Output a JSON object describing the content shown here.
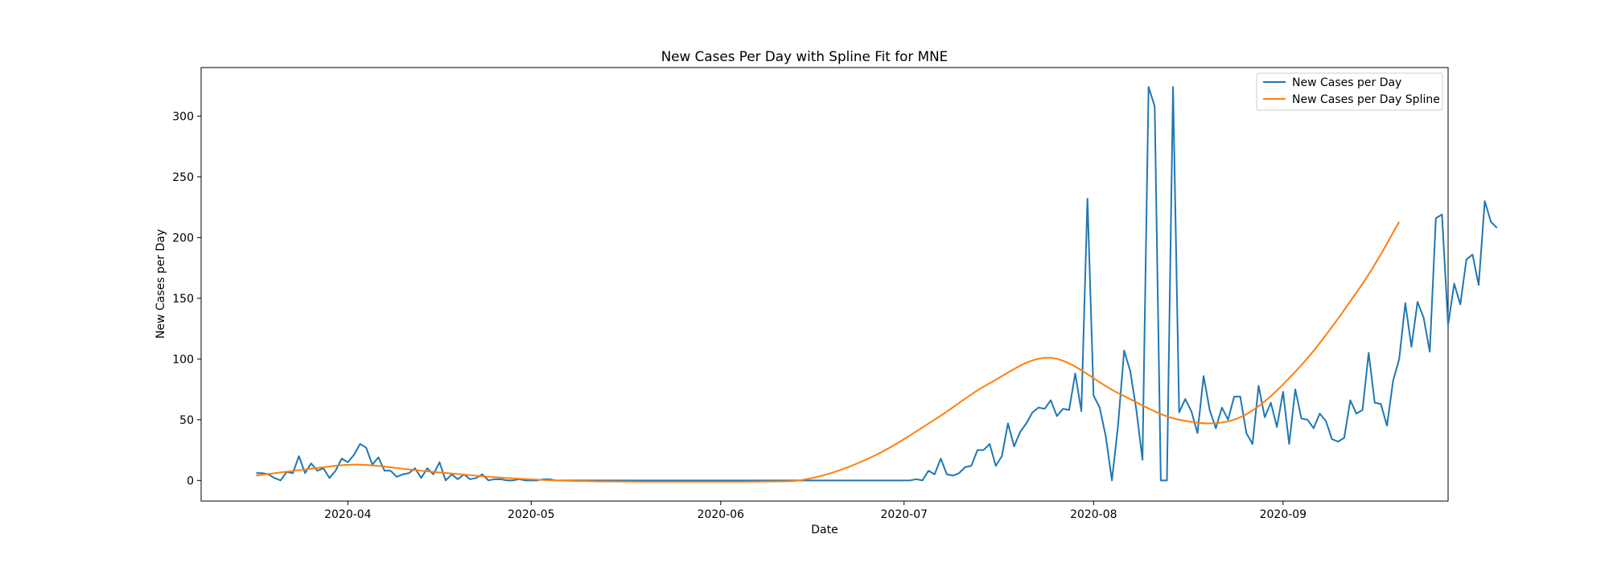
{
  "chart_data": {
    "type": "line",
    "title": "New Cases Per Day with Spline Fit for MNE",
    "xlabel": "Date",
    "ylabel": "New Cases per Day",
    "x_axis": {
      "kind": "date",
      "range": [
        "2020-03-08",
        "2020-09-28"
      ],
      "ticks": [
        "2020-04-01",
        "2020-05-01",
        "2020-06-01",
        "2020-07-01",
        "2020-08-01",
        "2020-09-01"
      ],
      "tick_labels": [
        "2020-04",
        "2020-05",
        "2020-06",
        "2020-07",
        "2020-08",
        "2020-09"
      ]
    },
    "y_axis": {
      "range": [
        -17,
        340
      ],
      "ticks": [
        0,
        50,
        100,
        150,
        200,
        250,
        300
      ],
      "tick_labels": [
        "0",
        "50",
        "100",
        "150",
        "200",
        "250",
        "300"
      ]
    },
    "grid": false,
    "legend": {
      "position": "top-right"
    },
    "colors": {
      "series_0": "#1f77b4",
      "series_1": "#ff7f0e"
    },
    "series": [
      {
        "name": "New Cases per Day",
        "start_date": "2020-03-17",
        "step_days": 1,
        "values": [
          6,
          6,
          5,
          2,
          0,
          7,
          6,
          20,
          6,
          14,
          8,
          10,
          2,
          8,
          18,
          15,
          21,
          30,
          27,
          13,
          19,
          8,
          8,
          3,
          5,
          6,
          10,
          2,
          10,
          5,
          15,
          0,
          5,
          1,
          5,
          1,
          2,
          5,
          0,
          1,
          1,
          0,
          0,
          1,
          0,
          0,
          0,
          1,
          1,
          0,
          0,
          0,
          0,
          0,
          0,
          0,
          0,
          0,
          0,
          0,
          0,
          0,
          0,
          0,
          0,
          0,
          0,
          0,
          0,
          0,
          0,
          0,
          0,
          0,
          0,
          0,
          0,
          0,
          0,
          0,
          0,
          0,
          0,
          0,
          0,
          0,
          0,
          0,
          0,
          0,
          0,
          0,
          0,
          0,
          0,
          0,
          0,
          0,
          0,
          0,
          0,
          0,
          0,
          0,
          0,
          0,
          0,
          0,
          1,
          0,
          8,
          5,
          18,
          5,
          4,
          6,
          11,
          12,
          25,
          25,
          30,
          12,
          20,
          47,
          28,
          40,
          47,
          56,
          60,
          59,
          66,
          53,
          59,
          58,
          88,
          57,
          232,
          70,
          60,
          36,
          0,
          45,
          107,
          90,
          58,
          17,
          324,
          308,
          0,
          0,
          324,
          56,
          67,
          57,
          39,
          86,
          58,
          43,
          60,
          50,
          69,
          69,
          39,
          30,
          78,
          52,
          64,
          44,
          73,
          30,
          75,
          51,
          50,
          43,
          55,
          49,
          34,
          32,
          35,
          66,
          55,
          58,
          105,
          64,
          63,
          45,
          82,
          100,
          146,
          110,
          147,
          134,
          106,
          216,
          219,
          128,
          162,
          145,
          182,
          186,
          161,
          230,
          213,
          208
        ]
      },
      {
        "name": "New Cases per Day Spline",
        "knots": [
          [
            "2020-03-17",
            4
          ],
          [
            "2020-03-25",
            9
          ],
          [
            "2020-04-03",
            13
          ],
          [
            "2020-04-15",
            7
          ],
          [
            "2020-05-05",
            0
          ],
          [
            "2020-06-06",
            -1
          ],
          [
            "2020-06-16",
            2
          ],
          [
            "2020-06-26",
            20
          ],
          [
            "2020-07-06",
            50
          ],
          [
            "2020-07-15",
            80
          ],
          [
            "2020-07-25",
            101
          ],
          [
            "2020-08-05",
            72
          ],
          [
            "2020-08-15",
            50
          ],
          [
            "2020-08-25",
            52
          ],
          [
            "2020-09-04",
            95
          ],
          [
            "2020-09-14",
            162
          ],
          [
            "2020-09-20",
            213
          ]
        ]
      }
    ]
  }
}
